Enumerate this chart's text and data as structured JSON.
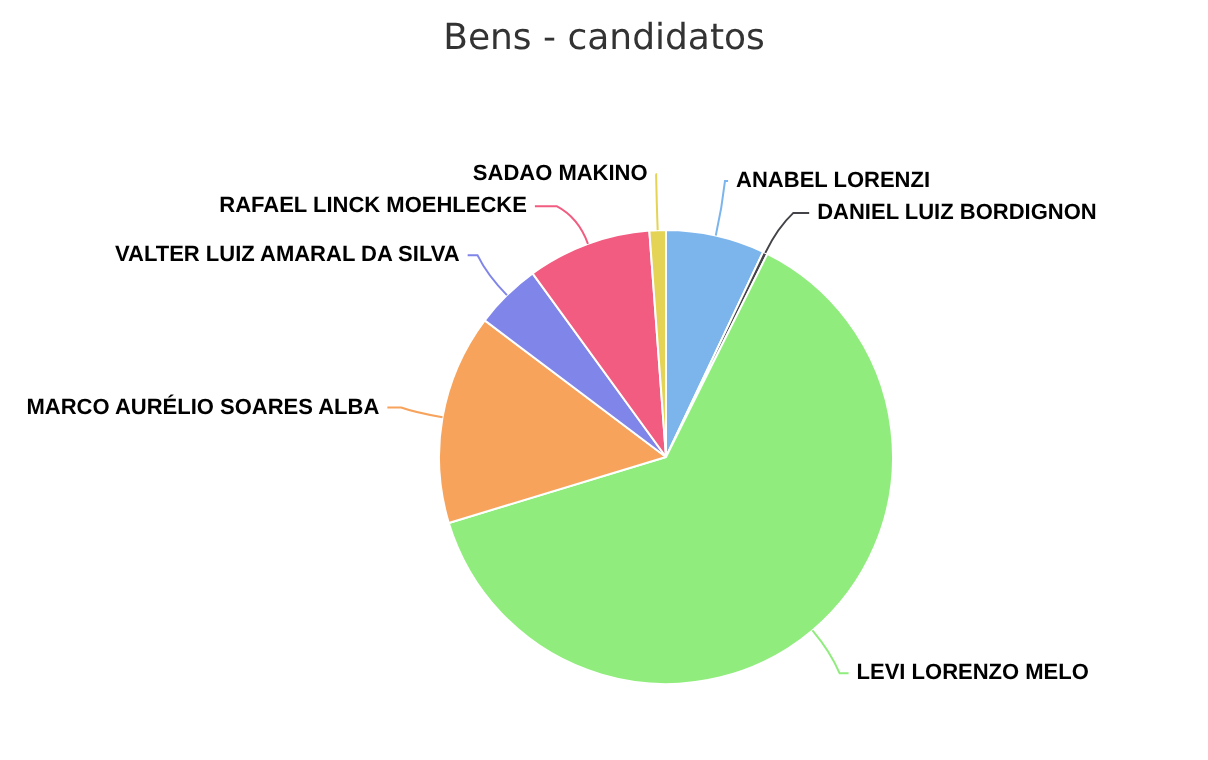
{
  "chart_data": {
    "type": "pie",
    "title": "Bens - candidatos",
    "categories": [
      "ANABEL LORENZI",
      "DANIEL LUIZ BORDIGNON",
      "LEVI LORENZO MELO",
      "MARCO AURÉLIO SOARES ALBA",
      "VALTER LUIZ AMARAL DA SILVA",
      "RAFAEL LINCK MOEHLECKE",
      "SADAO MAKINO"
    ],
    "values": [
      7.04,
      0.33,
      62.94,
      14.97,
      4.72,
      8.83,
      1.17
    ],
    "colors": [
      "#7cb5ec",
      "#434348",
      "#90ed7d",
      "#f7a35c",
      "#8085e9",
      "#f15c80",
      "#e4d354"
    ],
    "legend": false
  }
}
